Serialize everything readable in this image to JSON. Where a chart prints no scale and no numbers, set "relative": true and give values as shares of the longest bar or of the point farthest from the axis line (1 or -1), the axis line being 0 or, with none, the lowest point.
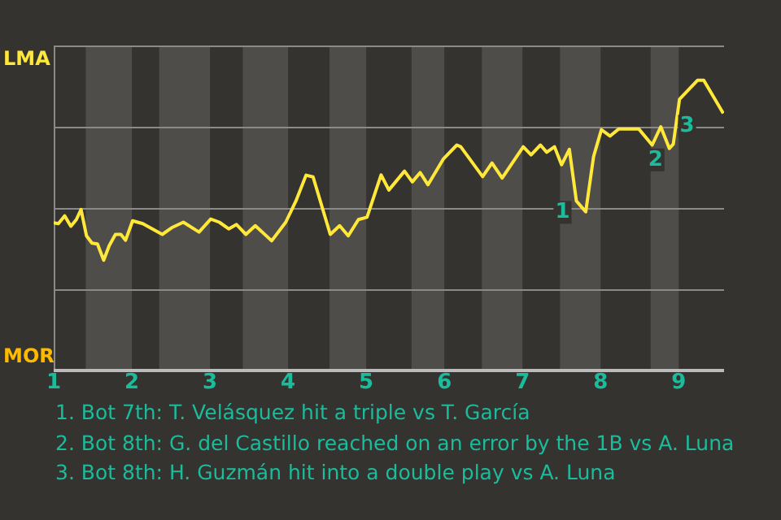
{
  "chart_data": {
    "type": "line",
    "relative": true,
    "x": [
      1,
      1.06,
      1.14,
      1.22,
      1.29,
      1.35,
      1.42,
      1.49,
      1.56,
      1.64,
      1.71,
      1.79,
      1.86,
      1.92,
      2.01,
      2.14,
      2.39,
      2.51,
      2.66,
      2.86,
      3.01,
      3.12,
      3.24,
      3.34,
      3.46,
      3.58,
      3.79,
      3.97,
      4.1,
      4.23,
      4.32,
      4.54,
      4.66,
      4.77,
      4.9,
      5.01,
      5.19,
      5.29,
      5.49,
      5.59,
      5.69,
      5.79,
      5.99,
      6.16,
      6.21,
      6.49,
      6.61,
      6.74,
      7.01,
      7.11,
      7.23,
      7.31,
      7.41,
      7.5,
      7.6,
      7.69,
      7.81,
      7.91,
      8.01,
      8.12,
      8.23,
      8.49,
      8.66,
      8.77,
      8.88,
      8.93,
      9.01,
      9.24,
      9.32,
      9.57
    ],
    "series": [
      {
        "color": "#ffe83a",
        "values": [
          0.509,
          0.506,
          0.533,
          0.497,
          0.52,
          0.555,
          0.464,
          0.439,
          0.436,
          0.38,
          0.43,
          0.469,
          0.469,
          0.449,
          0.516,
          0.506,
          0.469,
          0.492,
          0.511,
          0.477,
          0.522,
          0.511,
          0.488,
          0.503,
          0.469,
          0.499,
          0.447,
          0.511,
          0.584,
          0.673,
          0.667,
          0.469,
          0.499,
          0.464,
          0.52,
          0.528,
          0.674,
          0.622,
          0.687,
          0.65,
          0.682,
          0.64,
          0.73,
          0.777,
          0.771,
          0.668,
          0.715,
          0.663,
          0.771,
          0.743,
          0.777,
          0.752,
          0.771,
          0.709,
          0.762,
          0.584,
          0.547,
          0.737,
          0.83,
          0.808,
          0.832,
          0.832,
          0.777,
          0.84,
          0.765,
          0.78,
          0.935,
          1,
          1,
          0.886
        ]
      }
    ],
    "xlim": [
      1,
      9.58
    ],
    "xticks": [
      1,
      2,
      3,
      4,
      5,
      6,
      7,
      8,
      9
    ],
    "grid": "y",
    "legend": false,
    "marker": "none",
    "bands": [
      {
        "axis": "x",
        "from": 1.41,
        "to": 2,
        "color": "#4f4d4a"
      },
      {
        "axis": "x",
        "from": 2.35,
        "to": 3,
        "color": "#4f4d4a"
      },
      {
        "axis": "x",
        "from": 3.42,
        "to": 4,
        "color": "#4f4d4a"
      },
      {
        "axis": "x",
        "from": 4.53,
        "to": 5,
        "color": "#4f4d4a"
      },
      {
        "axis": "x",
        "from": 5.58,
        "to": 6,
        "color": "#4f4d4a"
      },
      {
        "axis": "x",
        "from": 6.48,
        "to": 7,
        "color": "#4f4d4a"
      },
      {
        "axis": "x",
        "from": 7.48,
        "to": 8,
        "color": "#4f4d4a"
      },
      {
        "axis": "x",
        "from": 8.64,
        "to": 9,
        "color": "#4f4d4a"
      }
    ],
    "annotations": [
      "LMA",
      "MOR",
      {
        "text": "1",
        "x": 7.69,
        "y": 0.584
      },
      {
        "text": "2",
        "x": 8.88,
        "y": 0.765
      },
      {
        "text": "3",
        "x": 8.93,
        "y": 0.78
      },
      "1. Bot 7th: T. Velásquez hit a triple vs T. García",
      "2. Bot 8th: G. del Castillo reached on an error by the 1B vs A. Luna",
      "3. Bot 8th: H. Guzmán hit into a double play vs A. Luna"
    ]
  }
}
